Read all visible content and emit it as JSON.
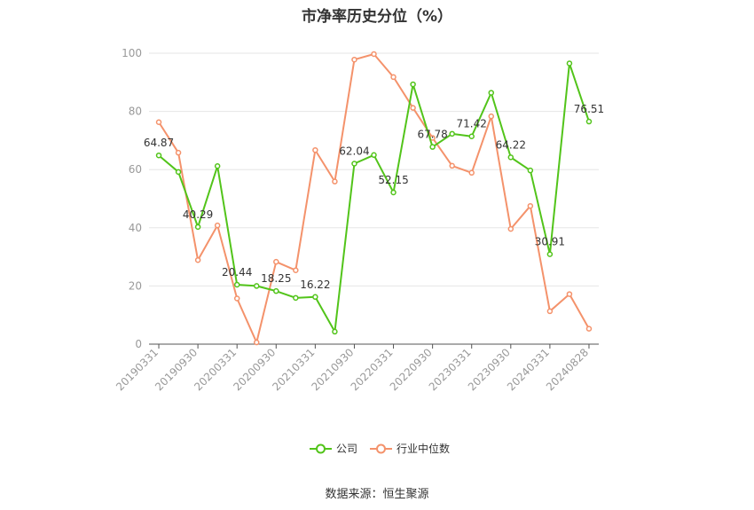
{
  "chart_data": {
    "type": "line",
    "title": "市净率历史分位（%）",
    "xlabel": "",
    "ylabel": "",
    "ylim": [
      0,
      100
    ],
    "yticks": [
      "0",
      "20",
      "40",
      "60",
      "80",
      "100"
    ],
    "x": [
      "20190331",
      "20190630",
      "20190930",
      "20191231",
      "20200331",
      "20200630",
      "20200930",
      "20201231",
      "20210331",
      "20210630",
      "20210930",
      "20211231",
      "20220331",
      "20220630",
      "20220930",
      "20221231",
      "20230331",
      "20230630",
      "20230930",
      "20231231",
      "20240331",
      "20240630",
      "20240828"
    ],
    "xtick_labels": [
      "20190331",
      "20190930",
      "20200331",
      "20200930",
      "20210331",
      "20210930",
      "20220331",
      "20220930",
      "20230331",
      "20230930",
      "20240331",
      "20240828"
    ],
    "grid": true,
    "legend_position": "bottom",
    "series": [
      {
        "name": "公司",
        "color": "#52c41a",
        "values": [
          64.87,
          59.2,
          40.29,
          61.2,
          20.44,
          20.0,
          18.25,
          15.9,
          16.22,
          4.3,
          62.04,
          65.0,
          52.15,
          89.3,
          67.78,
          72.3,
          71.42,
          86.4,
          64.22,
          59.7,
          30.91,
          96.5,
          76.51
        ],
        "labels": [
          "64.87",
          "",
          "40.29",
          "",
          "20.44",
          "",
          "18.25",
          "",
          "16.22",
          "",
          "62.04",
          "",
          "52.15",
          "",
          "67.78",
          "",
          "71.42",
          "",
          "64.22",
          "",
          "30.91",
          "",
          "76.51"
        ]
      },
      {
        "name": "行业中位数",
        "color": "#f4926b",
        "values": [
          76.3,
          65.8,
          28.9,
          40.8,
          15.7,
          0.6,
          28.3,
          25.4,
          66.7,
          55.9,
          97.8,
          99.7,
          91.8,
          81.2,
          70.9,
          61.3,
          58.9,
          78.3,
          39.6,
          47.5,
          11.3,
          17.2,
          5.3
        ]
      }
    ]
  },
  "source_text": "数据来源：恒生聚源"
}
